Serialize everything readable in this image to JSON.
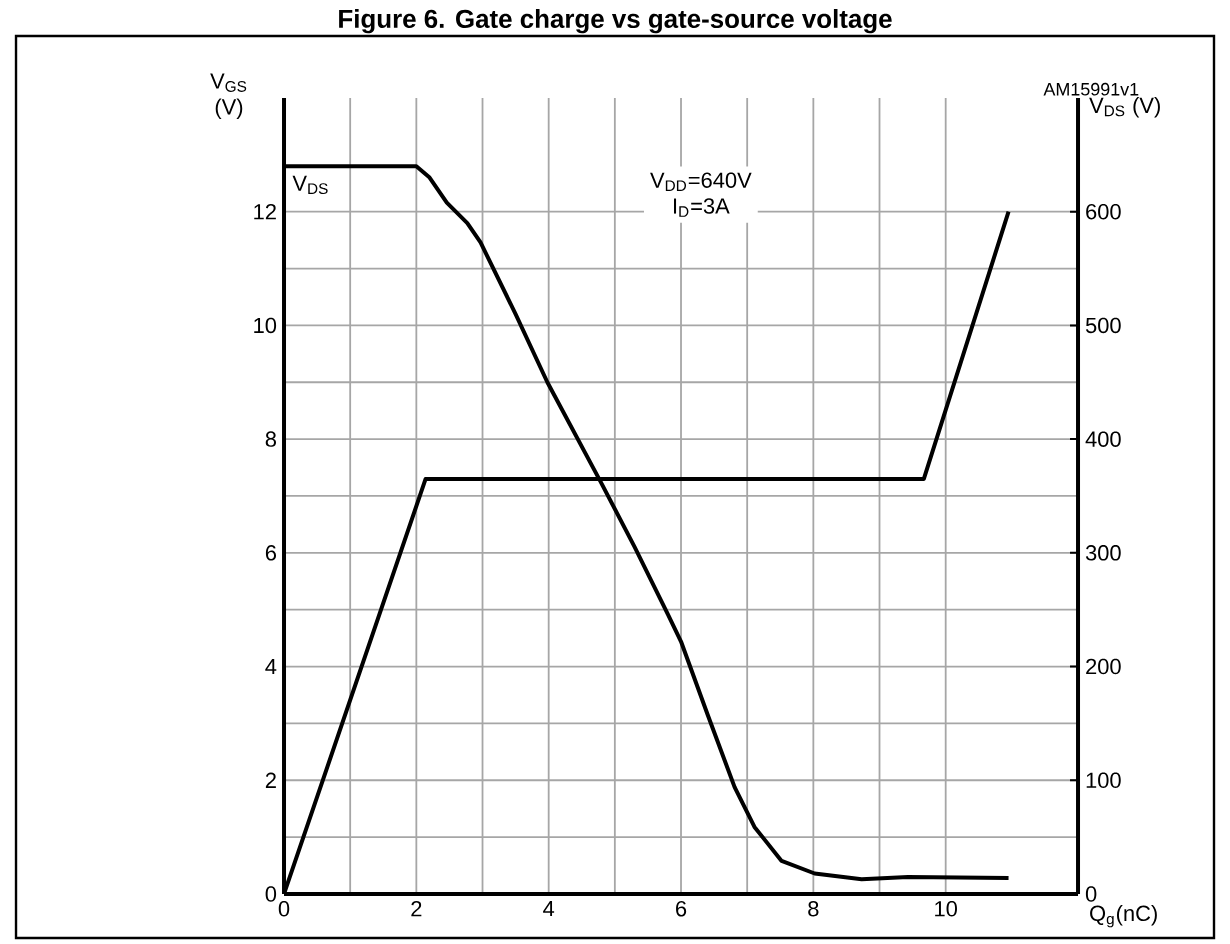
{
  "chart_data": {
    "type": "line",
    "title": "Figure 6. Gate charge vs gate-source voltage",
    "xlabel": "Q$_{g}$(nC)",
    "ylabel": "V$_{GS}$ (V)",
    "y2label": "V$_{DS}$ (V)",
    "annotations": [
      "V$_{DD}$=640V",
      "I$_{D}$=3A",
      "AM15991v1"
    ],
    "xlim": [
      0,
      12
    ],
    "xticks": [
      0,
      2,
      4,
      6,
      8,
      10
    ],
    "ylim": [
      0,
      14
    ],
    "yticks": [
      0,
      2,
      4,
      6,
      8,
      10,
      12
    ],
    "y2lim": [
      0,
      700
    ],
    "y2ticks": [
      0,
      100,
      200,
      300,
      400,
      500,
      600
    ],
    "grid": true,
    "series": [
      {
        "color": "#000000",
        "x": [
          0,
          2.14,
          9.67,
          10.95
        ],
        "values": [
          0,
          7.3,
          7.3,
          12
        ]
      },
      {
        "name": "V$_{DS}$",
        "color": "#000000",
        "axis": "y2",
        "x": [
          0,
          2.0,
          2.2,
          2.46,
          2.77,
          2.97,
          3.5,
          3.98,
          4.79,
          5.3,
          5.8,
          6.0,
          6.4,
          6.81,
          7.11,
          7.52,
          8.02,
          8.73,
          9.43,
          10.95
        ],
        "values": [
          640,
          640,
          630,
          608,
          590,
          573,
          510,
          450,
          362,
          305,
          246,
          222,
          158,
          94,
          59,
          29,
          18,
          13,
          15,
          14
        ]
      }
    ]
  }
}
